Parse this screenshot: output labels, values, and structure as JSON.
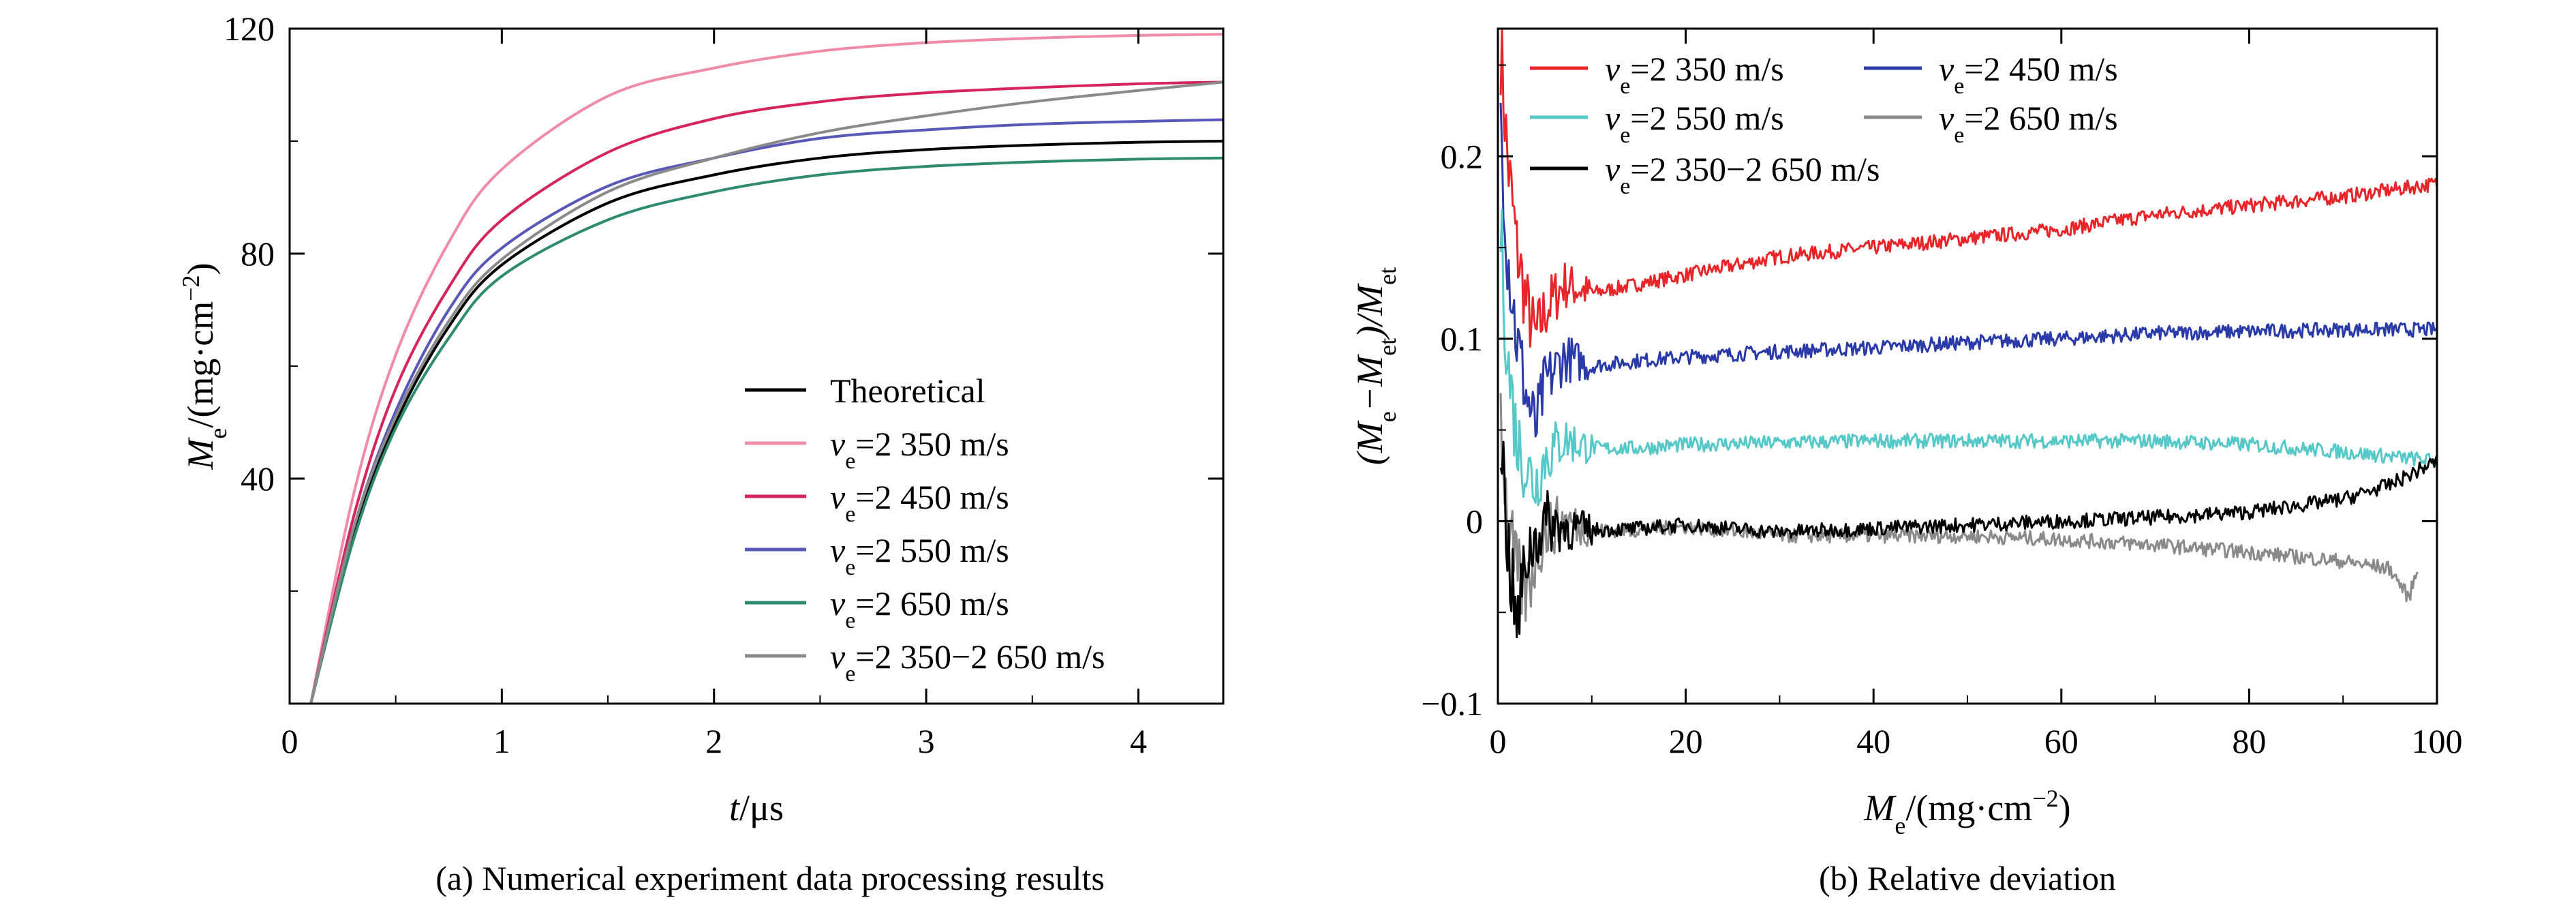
{
  "charts": [
    {
      "caption": "(a) Numerical experiment data processing results",
      "ylabel": {
        "main": "M",
        "sub": "e",
        "unit_pre": "/(mg·cm",
        "unit_sup": "−2",
        "unit_post": ")"
      },
      "xlabel": {
        "main": "t",
        "unit": "/μs"
      },
      "legend": [
        {
          "label": "Theoretical"
        },
        {
          "v": "v",
          "sub": "e",
          "label": "=2 350 m/s"
        },
        {
          "v": "v",
          "sub": "e",
          "label": "=2 450 m/s"
        },
        {
          "v": "v",
          "sub": "e",
          "label": "=2 550 m/s"
        },
        {
          "v": "v",
          "sub": "e",
          "label": "=2 650 m/s"
        },
        {
          "v": "v",
          "sub": "e",
          "label": "=2 350−2 650 m/s"
        }
      ]
    },
    {
      "caption": "(b) Relative deviation",
      "ylabel": {
        "p1": "(M",
        "s1": "e",
        "p2": "−M",
        "s2": "et",
        "p3": ")/M",
        "s3": "et"
      },
      "xlabel": {
        "main": "M",
        "sub": "e",
        "unit_pre": "/(mg·cm",
        "unit_sup": "−2",
        "unit_post": ")"
      },
      "legend": [
        {
          "v": "v",
          "sub": "e",
          "label": "=2 350 m/s"
        },
        {
          "v": "v",
          "sub": "e",
          "label": "=2 450 m/s"
        },
        {
          "v": "v",
          "sub": "e",
          "label": "=2 550 m/s"
        },
        {
          "v": "v",
          "sub": "e",
          "label": "=2 650 m/s"
        },
        {
          "v": "v",
          "sub": "e",
          "label": "=2 350−2 650 m/s"
        }
      ]
    }
  ],
  "chart_data": [
    {
      "type": "line",
      "x_range": [
        0,
        4.4
      ],
      "y_range": [
        0,
        120
      ],
      "x_ticks": [
        0,
        1,
        2,
        3,
        4
      ],
      "y_ticks": [
        40,
        80,
        120
      ],
      "legend_position": "bottom-right",
      "series": [
        {
          "name": "Theoretical",
          "color": "#000000",
          "x": [
            0.1,
            0.3,
            0.5,
            0.75,
            1,
            1.5,
            2,
            2.5,
            3,
            3.5,
            4,
            4.4
          ],
          "y": [
            0,
            30,
            50,
            67,
            78,
            89,
            94,
            97,
            98.5,
            99.3,
            99.8,
            100
          ]
        },
        {
          "name": "ve=2 350 m/s",
          "color": "#f08ca8",
          "x": [
            0.1,
            0.3,
            0.5,
            0.75,
            1,
            1.5,
            2,
            2.5,
            3,
            3.5,
            4,
            4.4
          ],
          "y": [
            0,
            37,
            62,
            82,
            95,
            108,
            113,
            116,
            117.5,
            118.3,
            118.8,
            119
          ]
        },
        {
          "name": "ve=2 450 m/s",
          "color": "#d6255c",
          "x": [
            0.1,
            0.3,
            0.5,
            0.75,
            1,
            1.5,
            2,
            2.5,
            3,
            3.5,
            4,
            4.4
          ],
          "y": [
            0,
            33,
            56,
            74,
            86,
            98,
            104,
            107,
            108.6,
            109.5,
            110.2,
            110.5
          ]
        },
        {
          "name": "ve=2 550 m/s",
          "color": "#5858b8",
          "x": [
            0.1,
            0.3,
            0.5,
            0.75,
            1,
            1.5,
            2,
            2.5,
            3,
            3.5,
            4,
            4.4
          ],
          "y": [
            0,
            31,
            52,
            70,
            81,
            92,
            97,
            100.5,
            102,
            103,
            103.5,
            103.8
          ]
        },
        {
          "name": "ve=2 650 m/s",
          "color": "#2e8b6e",
          "x": [
            0.1,
            0.3,
            0.5,
            0.75,
            1,
            1.5,
            2,
            2.5,
            3,
            3.5,
            4,
            4.4
          ],
          "y": [
            0,
            29,
            49,
            65,
            76,
            86,
            91,
            94,
            95.5,
            96.3,
            96.8,
            97
          ]
        },
        {
          "name": "ve=2 350−2 650 m/s",
          "color": "#8a8a8a",
          "x": [
            0.1,
            0.3,
            0.5,
            0.75,
            1,
            1.5,
            2,
            2.5,
            3,
            3.5,
            4,
            4.4
          ],
          "y": [
            0,
            31,
            51,
            68,
            79,
            91,
            97,
            101.5,
            104.5,
            107,
            109,
            110.5
          ]
        }
      ]
    },
    {
      "type": "line",
      "x_range": [
        0,
        100
      ],
      "y_range": [
        -0.1,
        0.27
      ],
      "x_ticks": [
        0,
        20,
        40,
        60,
        80,
        100
      ],
      "y_ticks": [
        -0.1,
        0,
        0.1,
        0.2
      ],
      "y_tick_labels": [
        "−0.1",
        "0",
        "0.1",
        "0.2"
      ],
      "legend_position": "top-left",
      "series": [
        {
          "name": "ve=2 350 m/s",
          "color": "#e8262a",
          "x": [
            0.3,
            1,
            2,
            3,
            4,
            5,
            7,
            10,
            15,
            20,
            30,
            40,
            50,
            60,
            70,
            80,
            90,
            100
          ],
          "y": [
            0.26,
            0.2,
            0.15,
            0.12,
            0.1,
            0.115,
            0.13,
            0.125,
            0.13,
            0.135,
            0.145,
            0.15,
            0.155,
            0.16,
            0.168,
            0.173,
            0.178,
            0.185
          ]
        },
        {
          "name": "ve=2 450 m/s",
          "color": "#2a3aa8",
          "x": [
            0.3,
            1,
            2,
            3,
            4,
            5,
            7,
            10,
            15,
            20,
            30,
            40,
            50,
            60,
            70,
            80,
            90,
            100
          ],
          "y": [
            0.22,
            0.15,
            0.1,
            0.07,
            0.05,
            0.075,
            0.09,
            0.085,
            0.088,
            0.09,
            0.093,
            0.095,
            0.098,
            0.1,
            0.103,
            0.104,
            0.105,
            0.105
          ]
        },
        {
          "name": "ve=2 550 m/s",
          "color": "#56c8c8",
          "x": [
            0.3,
            1,
            2,
            3,
            4,
            5,
            7,
            10,
            15,
            20,
            30,
            40,
            50,
            60,
            70,
            80,
            90,
            100
          ],
          "y": [
            0.16,
            0.09,
            0.045,
            0.03,
            0.02,
            0.035,
            0.045,
            0.04,
            0.04,
            0.042,
            0.043,
            0.044,
            0.044,
            0.044,
            0.044,
            0.042,
            0.038,
            0.033
          ]
        },
        {
          "name": "ve=2 650 m/s",
          "color": "#8a8a8a",
          "x": [
            0.3,
            1,
            2,
            3,
            4,
            5,
            7,
            10,
            15,
            20,
            30,
            40,
            50,
            60,
            70,
            80,
            90,
            95,
            97,
            98
          ],
          "y": [
            0.06,
            0.0,
            -0.03,
            -0.04,
            -0.02,
            -0.005,
            0.0,
            -0.005,
            -0.005,
            -0.003,
            -0.008,
            -0.008,
            -0.008,
            -0.01,
            -0.013,
            -0.017,
            -0.022,
            -0.026,
            -0.042,
            -0.025
          ]
        },
        {
          "name": "ve=2 350−2 650 m/s",
          "color": "#000000",
          "x": [
            0.3,
            1,
            2,
            3,
            4,
            5,
            7,
            10,
            15,
            20,
            30,
            40,
            50,
            60,
            70,
            80,
            90,
            95,
            100
          ],
          "y": [
            0.05,
            -0.01,
            -0.06,
            -0.02,
            -0.01,
            0.0,
            -0.003,
            -0.005,
            -0.004,
            -0.002,
            -0.006,
            -0.004,
            -0.002,
            0.0,
            0.002,
            0.005,
            0.012,
            0.02,
            0.033
          ]
        }
      ]
    }
  ]
}
